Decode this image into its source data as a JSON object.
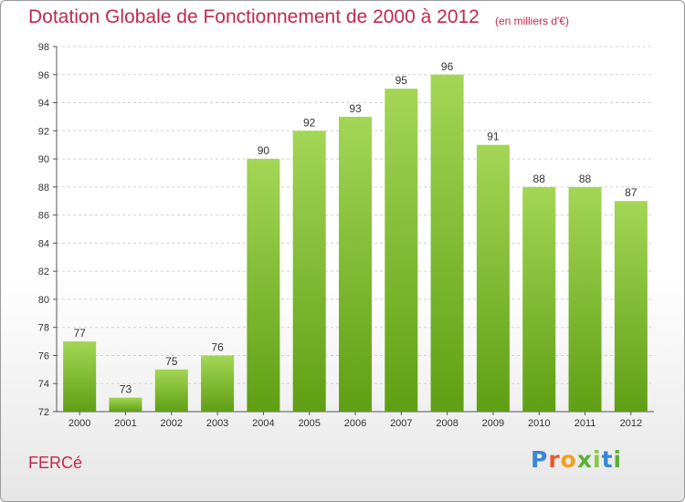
{
  "header": {
    "title": "Dotation Globale de Fonctionnement de 2000 à 2012",
    "unit": "(en milliers d'€)"
  },
  "footer": {
    "commune": "FERCé",
    "brand": [
      "P",
      "r",
      "o",
      "x",
      "i",
      "t",
      "i"
    ]
  },
  "chart_data": {
    "type": "bar",
    "categories": [
      "2000",
      "2001",
      "2002",
      "2003",
      "2004",
      "2005",
      "2006",
      "2007",
      "2008",
      "2009",
      "2010",
      "2011",
      "2012"
    ],
    "values": [
      77,
      73,
      75,
      76,
      90,
      92,
      93,
      95,
      96,
      91,
      88,
      88,
      87
    ],
    "ylim": [
      72,
      98
    ],
    "yticks": [
      72,
      74,
      76,
      78,
      80,
      82,
      84,
      86,
      88,
      90,
      92,
      94,
      96,
      98
    ],
    "grid": true,
    "bar_color": "#7fbf2e",
    "title_color": "#c0294d"
  }
}
